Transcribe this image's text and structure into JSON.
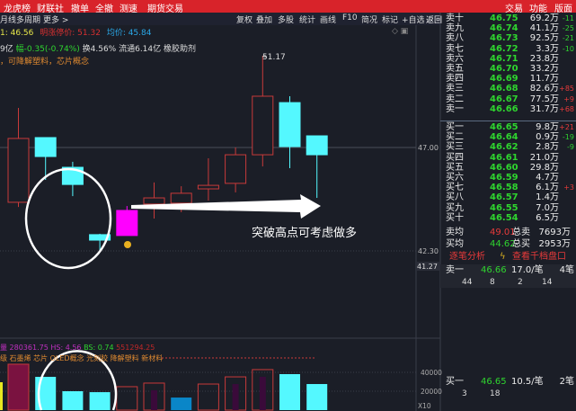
{
  "topbar": {
    "left": [
      "龙虎榜",
      "财联社",
      "撤单",
      "全撤",
      "测速",
      "期货交易"
    ],
    "right": [
      "交易",
      "功能",
      "版面"
    ]
  },
  "toolbar": {
    "left": [
      "月线",
      "多周期",
      "更多 >"
    ],
    "right": [
      "复权",
      "叠加",
      "多股",
      "统计",
      "画线",
      "F10",
      "简况",
      "标记",
      "+自选",
      "返回"
    ]
  },
  "info": {
    "line1": {
      "a": "1: 46.56",
      "b": "明涨停价: 51.32",
      "c": "均价: 45.84"
    },
    "line2": {
      "a": "9亿",
      "b": "幅-0.35(-0.74%)",
      "c": "换4.56% 流通6.14亿 橡胶助剂"
    },
    "line3": "，可降解塑料，芯片概念"
  },
  "chart": {
    "high_label": "51.17",
    "annotation": "突破高点可考虑做多",
    "axis": {
      "p1": "47.00",
      "p2": "42.30",
      "p3": "41.27",
      "v1": "40000",
      "v2": "20000",
      "unit": "X10"
    },
    "candles": [
      {
        "o": 44.51,
        "h": 48.8,
        "l": 44.3,
        "c": 47.41
      },
      {
        "o": 47.45,
        "h": 47.45,
        "l": 45.53,
        "c": 46.59
      },
      {
        "o": 46.1,
        "h": 46.35,
        "l": 44.79,
        "c": 45.32
      },
      {
        "o": 43.04,
        "h": 43.08,
        "l": 42.34,
        "c": 42.79
      },
      {
        "o": 43.0,
        "h": 44.34,
        "l": 43.0,
        "c": 44.14,
        "highlight": true
      },
      {
        "o": 44.43,
        "h": 45.41,
        "l": 43.77,
        "c": 44.71
      },
      {
        "o": 44.47,
        "h": 45.24,
        "l": 44.06,
        "c": 44.92
      },
      {
        "o": 45.12,
        "h": 46.51,
        "l": 44.59,
        "c": 45.28
      },
      {
        "o": 45.37,
        "h": 47.0,
        "l": 44.96,
        "c": 46.67
      },
      {
        "o": 46.67,
        "h": 51.17,
        "l": 46.14,
        "c": 49.33
      },
      {
        "o": 49.04,
        "h": 49.33,
        "l": 46.06,
        "c": 47.04
      },
      {
        "o": 47.53,
        "h": 47.53,
        "l": 44.71,
        "c": 46.67
      }
    ],
    "volumes": [
      48600,
      35200,
      20000,
      19000,
      24800,
      28600,
      13300,
      27600,
      35200,
      42900,
      38100,
      27600
    ],
    "volume_styles": [
      "maroon",
      "cyan",
      "cyan",
      "cyan",
      "hollow",
      "hollow-inner",
      "blue",
      "hollow",
      "hollow-inner",
      "hollow-inner",
      "cyan",
      "cyan"
    ],
    "colors": {
      "up": "#c83a3a",
      "down": "#54f8ff",
      "highlight": "#ff00ff",
      "blue": "#0a86c8",
      "maroon": "#7a1240",
      "inner": "#3a0a3a"
    }
  },
  "volume_info": {
    "a": "量 280361.75",
    "b": "HS: 4.56",
    "c": "BS: 0.74",
    "d": "551294.25",
    "concepts": "级 石墨烯 芯片 OLED概念 光刻胶 降解塑料 新材料"
  },
  "orderbook": {
    "sell": [
      {
        "label": "卖十",
        "price": "46.75",
        "vol": "69.2万",
        "chg": "-11"
      },
      {
        "label": "卖九",
        "price": "46.74",
        "vol": "41.1万",
        "chg": "-25"
      },
      {
        "label": "卖八",
        "price": "46.73",
        "vol": "92.5万",
        "chg": "-21"
      },
      {
        "label": "卖七",
        "price": "46.72",
        "vol": "3.3万",
        "chg": "-10"
      },
      {
        "label": "卖六",
        "price": "46.71",
        "vol": "23.8万",
        "chg": ""
      },
      {
        "label": "卖五",
        "price": "46.70",
        "vol": "33.2万",
        "chg": ""
      },
      {
        "label": "卖四",
        "price": "46.69",
        "vol": "11.7万",
        "chg": ""
      },
      {
        "label": "卖三",
        "price": "46.68",
        "vol": "82.6万",
        "chg": "+85"
      },
      {
        "label": "卖二",
        "price": "46.67",
        "vol": "77.5万",
        "chg": "+9"
      },
      {
        "label": "卖一",
        "price": "46.66",
        "vol": "31.7万",
        "chg": "+68"
      }
    ],
    "buy": [
      {
        "label": "买一",
        "price": "46.65",
        "vol": "9.8万",
        "chg": "+21"
      },
      {
        "label": "买二",
        "price": "46.64",
        "vol": "0.9万",
        "chg": "-19"
      },
      {
        "label": "买三",
        "price": "46.62",
        "vol": "2.8万",
        "chg": "-9"
      },
      {
        "label": "买四",
        "price": "46.61",
        "vol": "21.0万",
        "chg": ""
      },
      {
        "label": "买五",
        "price": "46.60",
        "vol": "29.8万",
        "chg": ""
      },
      {
        "label": "买六",
        "price": "46.59",
        "vol": "4.7万",
        "chg": ""
      },
      {
        "label": "买七",
        "price": "46.58",
        "vol": "6.1万",
        "chg": "+3"
      },
      {
        "label": "买八",
        "price": "46.57",
        "vol": "1.4万",
        "chg": ""
      },
      {
        "label": "买九",
        "price": "46.55",
        "vol": "7.0万",
        "chg": ""
      },
      {
        "label": "买十",
        "price": "46.54",
        "vol": "6.5万",
        "chg": ""
      }
    ],
    "sell_avg": {
      "label": "卖均",
      "price": "49.01",
      "total_label": "总卖",
      "total": "7693万"
    },
    "buy_avg": {
      "label": "买均",
      "price": "44.62",
      "total_label": "总买",
      "total": "2953万"
    },
    "tick_analysis": "逐笔分析",
    "view_depth": "查看千档盘口",
    "sell1_detail": {
      "label": "卖一",
      "price": "46.66",
      "avg": "17.0/笔",
      "count": "4笔",
      "orders": [
        "44",
        "8",
        "2",
        "14"
      ]
    },
    "buy1_detail": {
      "label": "买一",
      "price": "46.65",
      "avg": "10.5/笔",
      "count": "2笔",
      "orders": [
        "3",
        "18"
      ]
    }
  }
}
